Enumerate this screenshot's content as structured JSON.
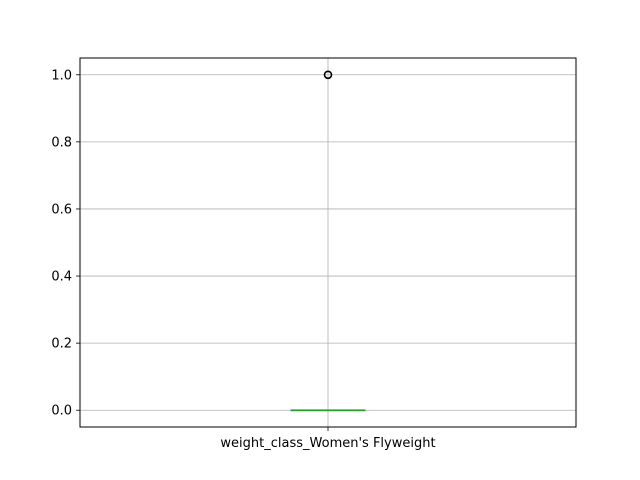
{
  "chart_data": {
    "type": "box",
    "title": "",
    "xlabel": "",
    "ylabel": "",
    "categories": [
      "weight_class_Women's Flyweight"
    ],
    "boxes": [
      {
        "name": "weight_class_Women's Flyweight",
        "q1": 0.0,
        "median": 0.0,
        "q3": 0.0,
        "whisker_low": 0.0,
        "whisker_high": 0.0,
        "outliers": [
          1.0
        ]
      }
    ],
    "ylim": [
      -0.05,
      1.05
    ],
    "yticks": [
      0.0,
      0.2,
      0.4,
      0.6,
      0.8,
      1.0
    ],
    "ytick_labels": [
      "0.0",
      "0.2",
      "0.4",
      "0.6",
      "0.8",
      "1.0"
    ],
    "grid": true,
    "colors": {
      "median": "#2ca02c",
      "box": "#1f77b4",
      "grid": "#b0b0b0",
      "axes": "#000000",
      "outlier": "#000000"
    }
  }
}
